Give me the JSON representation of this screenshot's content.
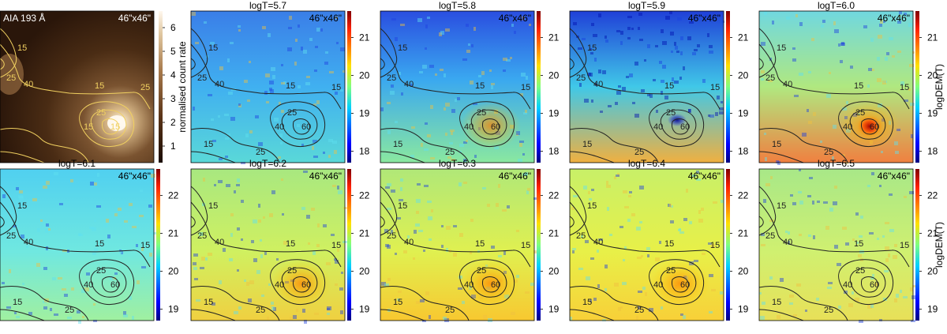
{
  "figure": {
    "fov_label": "46\"x46\"",
    "aia_panel": {
      "title": "AIA 193 Å",
      "colorbar_label": "normalised count rate",
      "colorbar_ticks": [
        "1",
        "2",
        "3",
        "4",
        "5",
        "6"
      ],
      "colorbar_range": [
        0.3,
        6.7
      ],
      "contour_labels": [
        "15",
        "25",
        "40",
        "15",
        "25",
        "15",
        "15",
        "25"
      ]
    },
    "dem_panels_top": {
      "titles": [
        "logT=5.7",
        "logT=5.8",
        "logT=5.9",
        "logT=6.0"
      ],
      "colorbar_ticks": [
        "18",
        "19",
        "20",
        "21"
      ],
      "colorbar_range": [
        17.7,
        21.7
      ],
      "colorbar_label": "logDEM(T)"
    },
    "dem_panels_bottom": {
      "titles": [
        "logT=6.1",
        "logT=6.2",
        "logT=6.3",
        "logT=6.4",
        "logT=6.5"
      ],
      "colorbar_ticks": [
        "19",
        "20",
        "21",
        "22"
      ],
      "colorbar_range": [
        18.7,
        22.7
      ],
      "colorbar_label": "logDEM(T)"
    },
    "contour_labels": [
      "15",
      "25",
      "40",
      "15",
      "25",
      "60",
      "40",
      "15",
      "15",
      "25"
    ],
    "colors": {
      "contour_aia": "#f0d060",
      "contour_dem": "#222222",
      "aia_dark": "#1a0c04",
      "aia_bright": "#fff8ee"
    }
  }
}
